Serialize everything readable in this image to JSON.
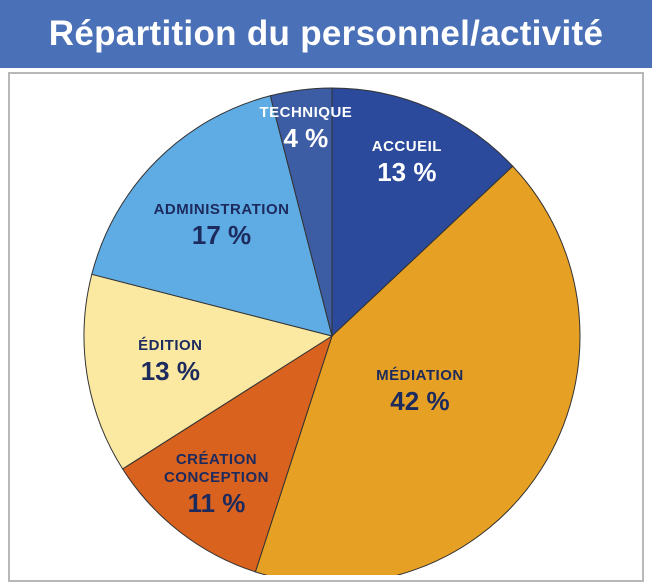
{
  "chart_data": {
    "type": "pie",
    "title": "Répartition du personnel/activité",
    "categories": [
      "ACCUEIL",
      "MÉDIATION",
      "CRÉATION CONCEPTION",
      "ÉDITION",
      "ADMINISTRATION",
      "TECHNIQUE"
    ],
    "values": [
      13,
      42,
      11,
      13,
      17,
      4
    ],
    "value_labels": [
      "13 %",
      "42 %",
      "11 %",
      "13 %",
      "17 %",
      "4 %"
    ],
    "colors": [
      "#2b4a9c",
      "#e6a024",
      "#d8621e",
      "#fbe9a2",
      "#5fabe3",
      "#3c5ca4"
    ]
  }
}
